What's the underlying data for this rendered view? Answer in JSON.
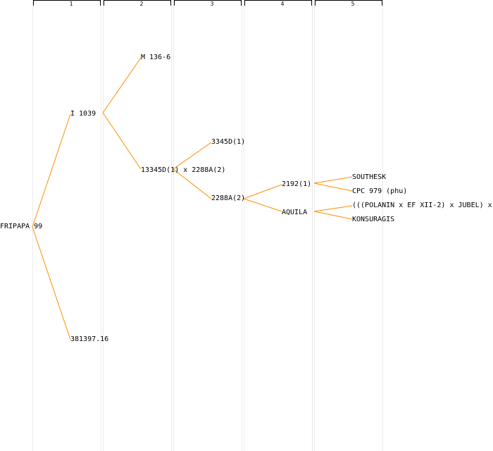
{
  "accent_color": "#ff8c00",
  "columns": [
    "1",
    "2",
    "3",
    "4",
    "5"
  ],
  "nodes": {
    "root": "FRIPAPA 99",
    "p1": "I 1039",
    "p2": "381397.16",
    "gp1": "M 136-6",
    "gp2": "13345D(1) x 2288A(2)",
    "g3a": "3345D(1)",
    "g3b": "2288A(2)",
    "g4a": "2192(1)",
    "g4b": "AQUILA",
    "g5a": "SOUTHESK",
    "g5b": "CPC 979 (phu)",
    "g5c": "(((POLANIN x EF XII-2) x JUBEL) x",
    "g5d": "KONSURAGIS"
  }
}
